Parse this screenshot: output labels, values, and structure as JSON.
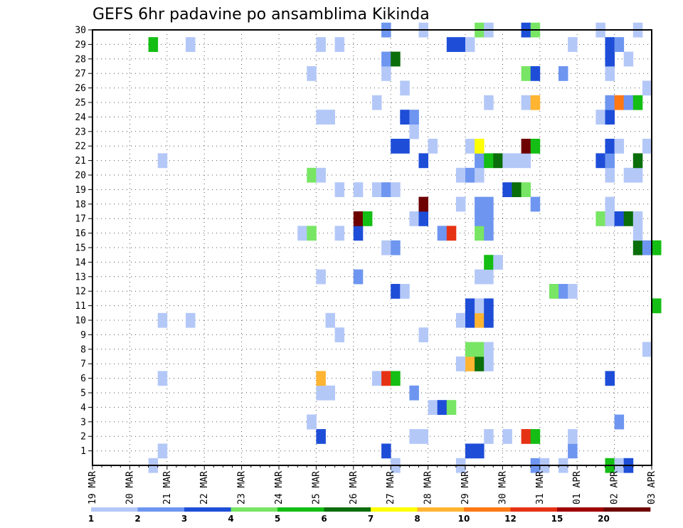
{
  "chart_data": {
    "type": "heatmap",
    "title": "GEFS 6hr padavine po ansamblima Kikinda",
    "xlabel": "",
    "ylabel": "",
    "x_ticks": [
      "19 MAR",
      "20 MAR",
      "21 MAR",
      "22 MAR",
      "23 MAR",
      "24 MAR",
      "25 MAR",
      "26 MAR",
      "27 MAR",
      "28 MAR",
      "29 MAR",
      "30 MAR",
      "31 MAR",
      "01 APR",
      "02 APR",
      "03 APR"
    ],
    "x_range_steps": [
      0,
      60
    ],
    "step_hours": 6,
    "y_ticks": [
      1,
      2,
      3,
      4,
      5,
      6,
      7,
      8,
      9,
      10,
      11,
      12,
      13,
      14,
      15,
      16,
      17,
      18,
      19,
      20,
      21,
      22,
      23,
      24,
      25,
      26,
      27,
      28,
      29,
      30
    ],
    "y_range": [
      0,
      30
    ],
    "grid": true,
    "color_levels": [
      1,
      2,
      3,
      4,
      5,
      6,
      7,
      8,
      10,
      12,
      15,
      20
    ],
    "colors": [
      "#b4c8f8",
      "#6e96f0",
      "#1e4ed8",
      "#78e664",
      "#14be14",
      "#0a6e0a",
      "#ffff00",
      "#ffb432",
      "#ff7814",
      "#e63214",
      "#a00000",
      "#6e0000"
    ],
    "legend": {
      "position": "bottom",
      "labels": [
        "1",
        "2",
        "3",
        "4",
        "5",
        "6",
        "7",
        "8",
        "10",
        "12",
        "15",
        "20"
      ]
    },
    "cells": [
      [
        6.5,
        0,
        0
      ],
      [
        32.5,
        0,
        0
      ],
      [
        39.5,
        0,
        0
      ],
      [
        47.5,
        0,
        1
      ],
      [
        48.5,
        0,
        0
      ],
      [
        50.5,
        0,
        0
      ],
      [
        55.5,
        0,
        4
      ],
      [
        56.5,
        0,
        0
      ],
      [
        57.5,
        0,
        2
      ],
      [
        7.5,
        1,
        0
      ],
      [
        31.5,
        1,
        2
      ],
      [
        40.5,
        1,
        2
      ],
      [
        41.5,
        1,
        2
      ],
      [
        51.5,
        1,
        1
      ],
      [
        24.5,
        2,
        2
      ],
      [
        34.5,
        2,
        0
      ],
      [
        35.5,
        2,
        0
      ],
      [
        42.5,
        2,
        0
      ],
      [
        44.5,
        2,
        0
      ],
      [
        46.5,
        2,
        9
      ],
      [
        47.5,
        2,
        4
      ],
      [
        51.5,
        2,
        0
      ],
      [
        23.5,
        3,
        0
      ],
      [
        23.5,
        3,
        0
      ],
      [
        23.5,
        3,
        0
      ],
      [
        56.5,
        3,
        1
      ],
      [
        36.5,
        4,
        0
      ],
      [
        37.5,
        4,
        2
      ],
      [
        38.5,
        4,
        3
      ],
      [
        24.5,
        5,
        0
      ],
      [
        25.5,
        5,
        0
      ],
      [
        34.5,
        5,
        1
      ],
      [
        7.5,
        6,
        0
      ],
      [
        24.5,
        6,
        7
      ],
      [
        30.5,
        6,
        0
      ],
      [
        31.5,
        6,
        9
      ],
      [
        32.5,
        6,
        4
      ],
      [
        55.5,
        6,
        2
      ],
      [
        39.5,
        7,
        0
      ],
      [
        40.5,
        7,
        7
      ],
      [
        41.5,
        7,
        5
      ],
      [
        42.5,
        7,
        0
      ],
      [
        40.5,
        8,
        3
      ],
      [
        41.5,
        8,
        3
      ],
      [
        42.5,
        8,
        0
      ],
      [
        59.5,
        8,
        0
      ],
      [
        26.5,
        9,
        0
      ],
      [
        35.5,
        9,
        0
      ],
      [
        7.5,
        10,
        0
      ],
      [
        10.5,
        10,
        0
      ],
      [
        25.5,
        10,
        0
      ],
      [
        39.5,
        10,
        0
      ],
      [
        40.5,
        10,
        2
      ],
      [
        41.5,
        10,
        7
      ],
      [
        42.5,
        10,
        2
      ],
      [
        40.5,
        11,
        2
      ],
      [
        41.5,
        11,
        0
      ],
      [
        42.5,
        11,
        2
      ],
      [
        60.5,
        11,
        4
      ],
      [
        32.5,
        12,
        2
      ],
      [
        33.5,
        12,
        0
      ],
      [
        49.5,
        12,
        3
      ],
      [
        50.5,
        12,
        1
      ],
      [
        51.5,
        12,
        0
      ],
      [
        24.5,
        13,
        0
      ],
      [
        28.5,
        13,
        1
      ],
      [
        41.5,
        13,
        0
      ],
      [
        42.5,
        13,
        0
      ],
      [
        42.5,
        14,
        4
      ],
      [
        43.5,
        14,
        0
      ],
      [
        31.5,
        15,
        0
      ],
      [
        32.5,
        15,
        1
      ],
      [
        58.5,
        15,
        5
      ],
      [
        59.5,
        15,
        1
      ],
      [
        60.5,
        15,
        4
      ],
      [
        22.5,
        16,
        0
      ],
      [
        23.5,
        16,
        3
      ],
      [
        26.5,
        16,
        0
      ],
      [
        28.5,
        16,
        2
      ],
      [
        37.5,
        16,
        1
      ],
      [
        38.5,
        16,
        9
      ],
      [
        41.5,
        16,
        3
      ],
      [
        42.5,
        16,
        1
      ],
      [
        58.5,
        16,
        0
      ],
      [
        28.5,
        17,
        11
      ],
      [
        29.5,
        17,
        4
      ],
      [
        34.5,
        17,
        0
      ],
      [
        35.5,
        17,
        2
      ],
      [
        41.5,
        17,
        1
      ],
      [
        42.5,
        17,
        1
      ],
      [
        54.5,
        17,
        3
      ],
      [
        55.5,
        17,
        0
      ],
      [
        56.5,
        17,
        2
      ],
      [
        57.5,
        17,
        5
      ],
      [
        58.5,
        17,
        0
      ],
      [
        35.5,
        18,
        11
      ],
      [
        39.5,
        18,
        0
      ],
      [
        41.5,
        18,
        1
      ],
      [
        42.5,
        18,
        1
      ],
      [
        47.5,
        18,
        1
      ],
      [
        55.5,
        18,
        0
      ],
      [
        26.5,
        19,
        0
      ],
      [
        28.5,
        19,
        0
      ],
      [
        30.5,
        19,
        0
      ],
      [
        31.5,
        19,
        1
      ],
      [
        32.5,
        19,
        0
      ],
      [
        44.5,
        19,
        2
      ],
      [
        45.5,
        19,
        5
      ],
      [
        46.5,
        19,
        3
      ],
      [
        23.5,
        20,
        3
      ],
      [
        24.5,
        20,
        0
      ],
      [
        39.5,
        20,
        0
      ],
      [
        40.5,
        20,
        1
      ],
      [
        41.5,
        20,
        0
      ],
      [
        55.5,
        20,
        0
      ],
      [
        57.5,
        20,
        0
      ],
      [
        58.5,
        20,
        0
      ],
      [
        7.5,
        21,
        0
      ],
      [
        35.5,
        21,
        2
      ],
      [
        41.5,
        21,
        1
      ],
      [
        42.5,
        21,
        4
      ],
      [
        43.5,
        21,
        5
      ],
      [
        44.5,
        21,
        0
      ],
      [
        45.5,
        21,
        0
      ],
      [
        46.5,
        21,
        0
      ],
      [
        54.5,
        21,
        2
      ],
      [
        55.5,
        21,
        1
      ],
      [
        58.5,
        21,
        5
      ],
      [
        32.5,
        22,
        2
      ],
      [
        33.5,
        22,
        2
      ],
      [
        36.5,
        22,
        0
      ],
      [
        40.5,
        22,
        0
      ],
      [
        41.5,
        22,
        6
      ],
      [
        46.5,
        22,
        11
      ],
      [
        47.5,
        22,
        4
      ],
      [
        55.5,
        22,
        2
      ],
      [
        56.5,
        22,
        0
      ],
      [
        59.5,
        22,
        0
      ],
      [
        34.5,
        23,
        0
      ],
      [
        24.5,
        24,
        0
      ],
      [
        25.5,
        24,
        0
      ],
      [
        33.5,
        24,
        2
      ],
      [
        34.5,
        24,
        1
      ],
      [
        54.5,
        24,
        0
      ],
      [
        55.5,
        24,
        2
      ],
      [
        30.5,
        25,
        0
      ],
      [
        42.5,
        25,
        0
      ],
      [
        46.5,
        25,
        0
      ],
      [
        47.5,
        25,
        7
      ],
      [
        55.5,
        25,
        1
      ],
      [
        56.5,
        25,
        8
      ],
      [
        57.5,
        25,
        1
      ],
      [
        58.5,
        25,
        4
      ],
      [
        33.5,
        26,
        0
      ],
      [
        59.5,
        26,
        0
      ],
      [
        23.5,
        27,
        0
      ],
      [
        31.5,
        27,
        0
      ],
      [
        46.5,
        27,
        3
      ],
      [
        47.5,
        27,
        2
      ],
      [
        50.5,
        27,
        1
      ],
      [
        55.5,
        27,
        0
      ],
      [
        31.5,
        28,
        1
      ],
      [
        32.5,
        28,
        5
      ],
      [
        55.5,
        28,
        2
      ],
      [
        57.5,
        28,
        0
      ],
      [
        6.5,
        29,
        4
      ],
      [
        10.5,
        29,
        0
      ],
      [
        24.5,
        29,
        0
      ],
      [
        26.5,
        29,
        0
      ],
      [
        38.5,
        29,
        2
      ],
      [
        39.5,
        29,
        2
      ],
      [
        40.5,
        29,
        0
      ],
      [
        51.5,
        29,
        0
      ],
      [
        55.5,
        29,
        2
      ],
      [
        56.5,
        29,
        1
      ],
      [
        31.5,
        30,
        1
      ],
      [
        35.5,
        30,
        0
      ],
      [
        41.5,
        30,
        3
      ],
      [
        42.5,
        30,
        0
      ],
      [
        46.5,
        30,
        2
      ],
      [
        47.5,
        30,
        3
      ],
      [
        54.5,
        30,
        0
      ],
      [
        58.5,
        30,
        0
      ]
    ]
  }
}
